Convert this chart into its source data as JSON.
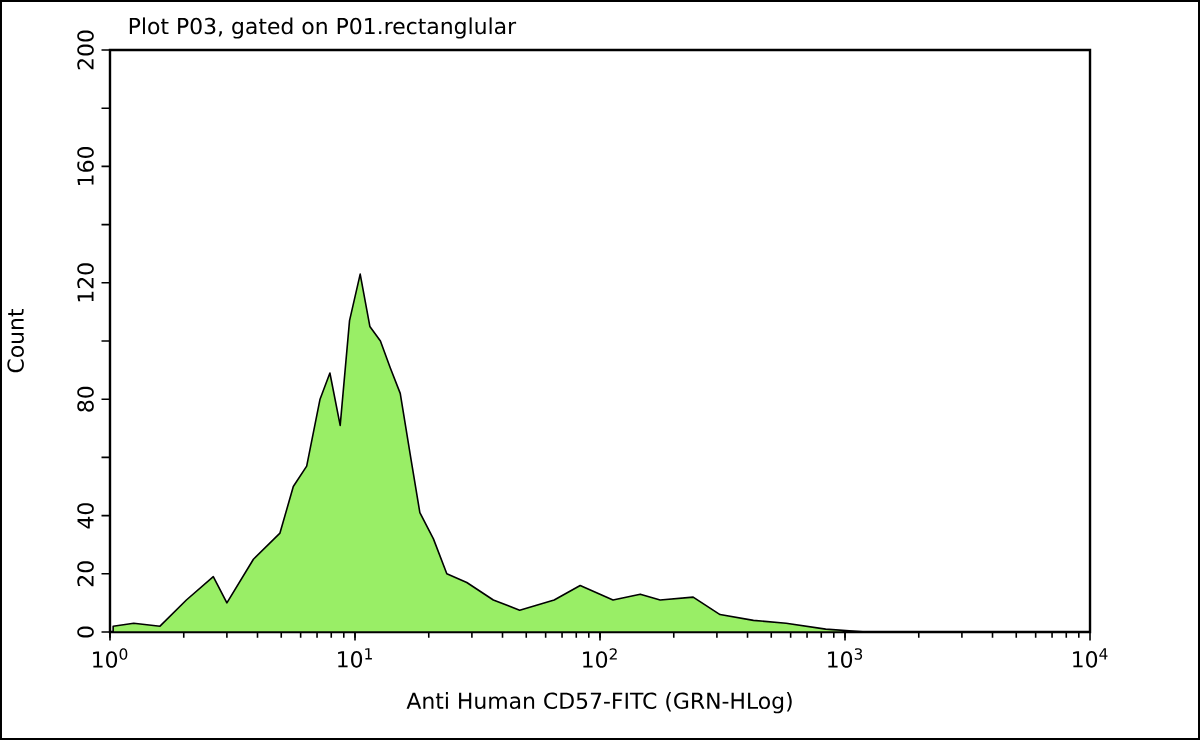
{
  "chart_data": {
    "type": "area",
    "title": "Plot P03, gated on P01.rectanglular",
    "xlabel": "Anti Human CD57-FITC (GRN-HLog)",
    "ylabel": "Count",
    "log": "x",
    "xlim": [
      1,
      10000
    ],
    "ylim": [
      0,
      200
    ],
    "xticks": [
      {
        "value": 1,
        "label": "10$^{0}$"
      },
      {
        "value": 10,
        "label": "10$^{1}$"
      },
      {
        "value": 100,
        "label": "10$^{2}$"
      },
      {
        "value": 1000,
        "label": "10$^{3}$"
      },
      {
        "value": 10000,
        "label": "10$^{4}$"
      }
    ],
    "yticks": [
      0,
      20,
      40,
      {
        "value": 60,
        "label": null
      },
      80,
      {
        "value": 100,
        "label": null
      },
      120,
      {
        "value": 140,
        "label": null
      },
      160,
      {
        "value": 180,
        "label": null
      },
      200
    ],
    "grid": false,
    "series": [
      {
        "color": "#99ee66",
        "x": [
          1.03,
          1.25,
          1.6,
          2.05,
          2.64,
          3.0,
          3.85,
          4.94,
          5.6,
          6.35,
          7.2,
          7.9,
          8.7,
          9.5,
          10.5,
          11.5,
          12.7,
          13.9,
          15.3,
          16.8,
          18.4,
          20.9,
          23.7,
          28.6,
          36.7,
          47,
          65,
          83,
          113,
          146,
          176,
          240,
          309,
          423,
          575,
          834,
          1220
        ],
        "values": [
          2,
          3,
          2,
          11,
          19,
          10,
          25,
          34,
          50,
          57,
          80,
          89,
          71,
          107,
          123,
          105,
          100,
          91,
          82,
          61,
          41,
          32,
          20,
          17,
          11,
          7.5,
          11,
          16,
          11,
          13,
          11,
          12,
          6,
          4,
          3,
          1,
          0
        ]
      }
    ]
  }
}
